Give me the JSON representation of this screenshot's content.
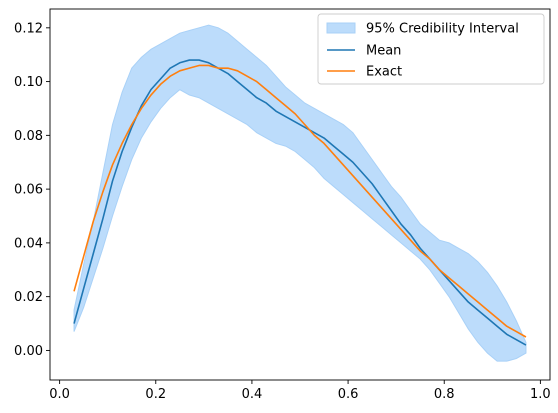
{
  "chart_data": {
    "type": "line",
    "title": "",
    "xlabel": "",
    "ylabel": "",
    "xlim": [
      -0.02,
      1.02
    ],
    "ylim": [
      -0.011,
      0.127
    ],
    "x_ticks": [
      0.0,
      0.2,
      0.4,
      0.6,
      0.8,
      1.0
    ],
    "x_tick_labels": [
      "0.0",
      "0.2",
      "0.4",
      "0.6",
      "0.8",
      "1.0"
    ],
    "y_ticks": [
      0.0,
      0.02,
      0.04,
      0.06,
      0.08,
      0.1,
      0.12
    ],
    "y_tick_labels": [
      "0.00",
      "0.02",
      "0.04",
      "0.06",
      "0.08",
      "0.10",
      "0.12"
    ],
    "grid": false,
    "legend_position": "top-right",
    "colors": {
      "band_fill": "#bcdcfb",
      "band_edge": "#a9d1f7",
      "mean": "#1f77b4",
      "exact": "#ff7f0e"
    },
    "series": [
      {
        "name": "95% Credibility Interval",
        "kind": "band",
        "x": [
          0.03,
          0.05,
          0.07,
          0.09,
          0.11,
          0.13,
          0.15,
          0.17,
          0.19,
          0.21,
          0.23,
          0.25,
          0.27,
          0.29,
          0.31,
          0.33,
          0.35,
          0.37,
          0.39,
          0.41,
          0.43,
          0.45,
          0.47,
          0.49,
          0.51,
          0.53,
          0.55,
          0.57,
          0.59,
          0.61,
          0.63,
          0.65,
          0.67,
          0.69,
          0.71,
          0.73,
          0.75,
          0.77,
          0.79,
          0.81,
          0.83,
          0.85,
          0.87,
          0.89,
          0.91,
          0.93,
          0.95,
          0.97
        ],
        "lower": [
          0.007,
          0.016,
          0.027,
          0.038,
          0.05,
          0.061,
          0.071,
          0.079,
          0.085,
          0.09,
          0.094,
          0.097,
          0.095,
          0.094,
          0.092,
          0.09,
          0.088,
          0.086,
          0.084,
          0.081,
          0.079,
          0.077,
          0.076,
          0.074,
          0.071,
          0.068,
          0.064,
          0.061,
          0.058,
          0.055,
          0.052,
          0.049,
          0.046,
          0.043,
          0.04,
          0.037,
          0.034,
          0.03,
          0.025,
          0.02,
          0.014,
          0.008,
          0.003,
          -0.001,
          -0.004,
          -0.004,
          -0.003,
          -0.001
        ],
        "upper": [
          0.015,
          0.032,
          0.048,
          0.066,
          0.084,
          0.096,
          0.105,
          0.109,
          0.112,
          0.114,
          0.116,
          0.118,
          0.119,
          0.12,
          0.121,
          0.12,
          0.118,
          0.115,
          0.112,
          0.109,
          0.106,
          0.102,
          0.098,
          0.095,
          0.092,
          0.09,
          0.088,
          0.086,
          0.084,
          0.081,
          0.076,
          0.071,
          0.066,
          0.061,
          0.057,
          0.052,
          0.047,
          0.044,
          0.041,
          0.04,
          0.038,
          0.036,
          0.033,
          0.029,
          0.024,
          0.018,
          0.011,
          0.003
        ]
      },
      {
        "name": "Mean",
        "kind": "line",
        "x": [
          0.03,
          0.05,
          0.07,
          0.09,
          0.11,
          0.13,
          0.15,
          0.17,
          0.19,
          0.21,
          0.23,
          0.25,
          0.27,
          0.29,
          0.31,
          0.33,
          0.35,
          0.37,
          0.39,
          0.41,
          0.43,
          0.45,
          0.47,
          0.49,
          0.51,
          0.53,
          0.55,
          0.57,
          0.59,
          0.61,
          0.63,
          0.65,
          0.67,
          0.69,
          0.71,
          0.73,
          0.75,
          0.77,
          0.79,
          0.81,
          0.83,
          0.85,
          0.87,
          0.89,
          0.91,
          0.93,
          0.95,
          0.97
        ],
        "y": [
          0.01,
          0.023,
          0.036,
          0.049,
          0.063,
          0.074,
          0.083,
          0.091,
          0.097,
          0.101,
          0.105,
          0.107,
          0.108,
          0.108,
          0.107,
          0.105,
          0.103,
          0.1,
          0.097,
          0.094,
          0.092,
          0.089,
          0.087,
          0.085,
          0.083,
          0.081,
          0.079,
          0.076,
          0.073,
          0.07,
          0.066,
          0.062,
          0.057,
          0.052,
          0.047,
          0.043,
          0.038,
          0.034,
          0.03,
          0.026,
          0.022,
          0.018,
          0.015,
          0.012,
          0.009,
          0.006,
          0.004,
          0.002
        ]
      },
      {
        "name": "Exact",
        "kind": "line",
        "x": [
          0.03,
          0.05,
          0.07,
          0.09,
          0.11,
          0.13,
          0.15,
          0.17,
          0.19,
          0.21,
          0.23,
          0.25,
          0.27,
          0.29,
          0.31,
          0.33,
          0.35,
          0.37,
          0.39,
          0.41,
          0.43,
          0.45,
          0.47,
          0.49,
          0.51,
          0.53,
          0.55,
          0.57,
          0.59,
          0.61,
          0.63,
          0.65,
          0.67,
          0.69,
          0.71,
          0.73,
          0.75,
          0.77,
          0.79,
          0.81,
          0.83,
          0.85,
          0.87,
          0.89,
          0.91,
          0.93,
          0.95,
          0.97
        ],
        "y": [
          0.022,
          0.035,
          0.048,
          0.059,
          0.069,
          0.077,
          0.084,
          0.09,
          0.095,
          0.099,
          0.102,
          0.104,
          0.105,
          0.106,
          0.106,
          0.105,
          0.105,
          0.104,
          0.102,
          0.1,
          0.097,
          0.094,
          0.091,
          0.088,
          0.084,
          0.08,
          0.077,
          0.073,
          0.069,
          0.065,
          0.061,
          0.057,
          0.053,
          0.049,
          0.045,
          0.041,
          0.037,
          0.034,
          0.03,
          0.027,
          0.024,
          0.021,
          0.018,
          0.015,
          0.012,
          0.009,
          0.007,
          0.005
        ]
      }
    ]
  }
}
